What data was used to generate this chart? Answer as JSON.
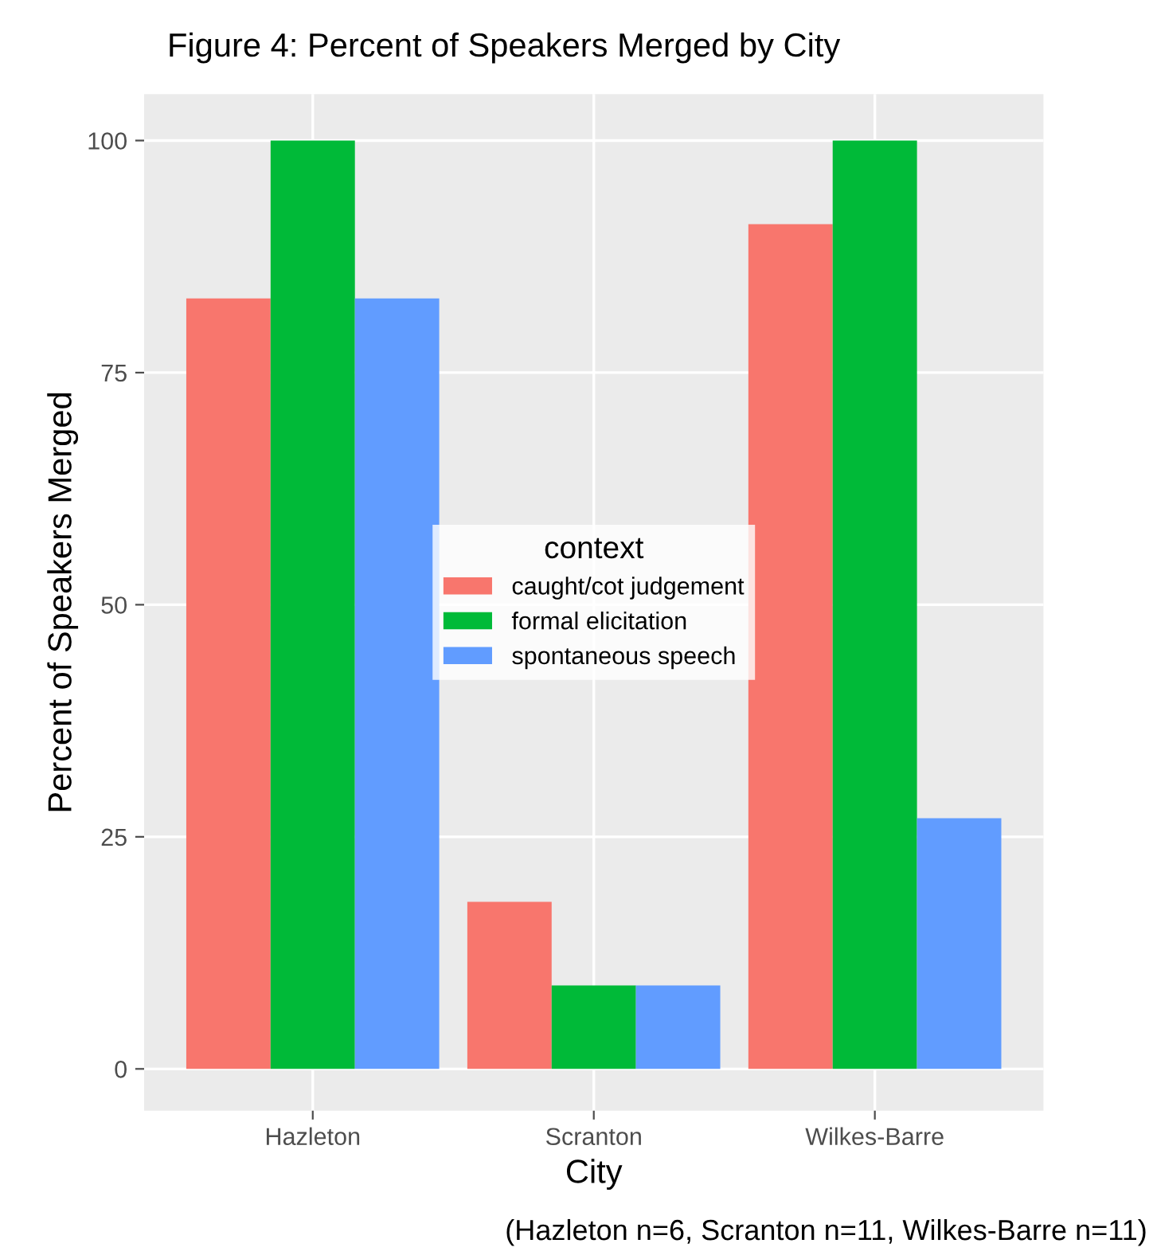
{
  "chart_data": {
    "type": "bar",
    "title": "Figure 4: Percent of Speakers Merged by City",
    "xlabel": "City",
    "ylabel": "Percent of Speakers Merged",
    "legend_title": "context",
    "categories": [
      "Hazleton",
      "Scranton",
      "Wilkes-Barre"
    ],
    "series": [
      {
        "name": "caught/cot judgement",
        "color": "#f8766d",
        "values": [
          83,
          18,
          91
        ]
      },
      {
        "name": "formal elicitation",
        "color": "#00ba38",
        "values": [
          100,
          9,
          100
        ]
      },
      {
        "name": "spontaneous speech",
        "color": "#619cff",
        "values": [
          83,
          9,
          27
        ]
      }
    ],
    "ylim": [
      -4.5,
      105
    ],
    "yticks": [
      0,
      25,
      50,
      75,
      100
    ],
    "grid": true,
    "legend": "center",
    "annotations": [
      "(Hazleton n=6, Scranton n=11, Wilkes-Barre n=11)"
    ]
  }
}
